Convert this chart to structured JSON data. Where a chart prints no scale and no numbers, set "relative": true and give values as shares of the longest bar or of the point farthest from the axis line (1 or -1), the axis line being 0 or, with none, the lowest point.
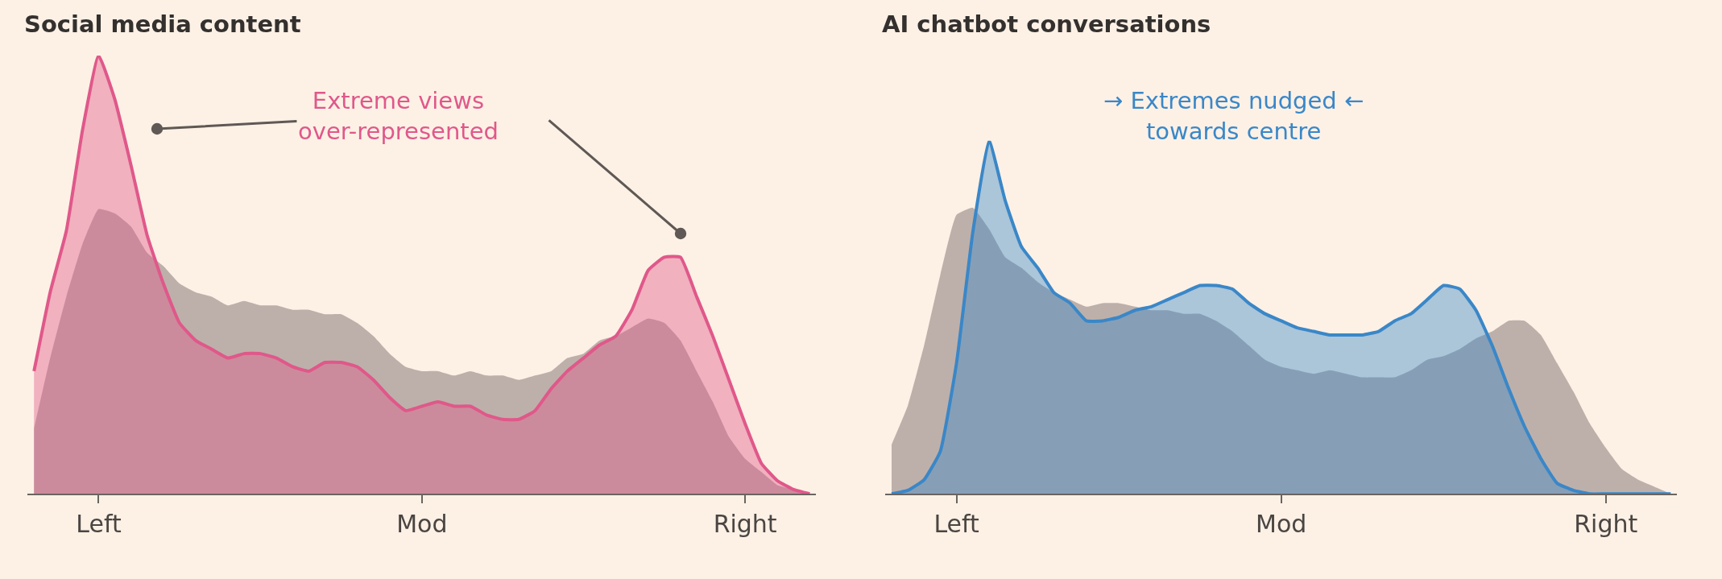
{
  "chart_data": [
    {
      "type": "area",
      "title": "Social media content",
      "relative": true,
      "grid": false,
      "categories": [
        null,
        null,
        null,
        null,
        "Left",
        null,
        null,
        null,
        null,
        null,
        null,
        null,
        null,
        null,
        null,
        null,
        null,
        null,
        null,
        null,
        null,
        null,
        null,
        null,
        "Mod",
        null,
        null,
        null,
        null,
        null,
        null,
        null,
        null,
        null,
        null,
        null,
        null,
        null,
        null,
        null,
        null,
        null,
        null,
        null,
        "Right",
        null,
        null,
        null,
        null
      ],
      "annotations": [
        "Extreme views\nover-represented"
      ],
      "series": [
        {
          "color": "#b9aca6",
          "values": [
            0.15,
            0.31,
            0.45,
            0.57,
            0.65,
            0.64,
            0.61,
            0.55,
            0.52,
            0.48,
            0.46,
            0.45,
            0.43,
            0.44,
            0.43,
            0.43,
            0.42,
            0.42,
            0.41,
            0.41,
            0.39,
            0.36,
            0.32,
            0.29,
            0.28,
            0.28,
            0.27,
            0.28,
            0.27,
            0.27,
            0.26,
            0.27,
            0.28,
            0.31,
            0.32,
            0.35,
            0.36,
            0.38,
            0.4,
            0.39,
            0.35,
            0.28,
            0.21,
            0.13,
            0.08,
            0.05,
            0.02,
            0.01,
            0
          ]
        },
        {
          "color": "#e0588a",
          "line_style": "solid",
          "values": [
            0.28,
            0.46,
            0.6,
            0.83,
            1,
            0.9,
            0.75,
            0.59,
            0.48,
            0.39,
            0.35,
            0.33,
            0.31,
            0.32,
            0.32,
            0.31,
            0.29,
            0.28,
            0.3,
            0.3,
            0.29,
            0.26,
            0.22,
            0.19,
            0.2,
            0.21,
            0.2,
            0.2,
            0.18,
            0.17,
            0.17,
            0.19,
            0.24,
            0.28,
            0.31,
            0.34,
            0.36,
            0.42,
            0.51,
            0.54,
            0.54,
            0.45,
            0.36,
            0.26,
            0.16,
            0.07,
            0.03,
            0.01,
            0
          ]
        }
      ]
    },
    {
      "type": "area",
      "title": "AI chatbot conversations",
      "relative": true,
      "grid": false,
      "categories": [
        null,
        null,
        null,
        null,
        "Left",
        null,
        null,
        null,
        null,
        null,
        null,
        null,
        null,
        null,
        null,
        null,
        null,
        null,
        null,
        null,
        null,
        null,
        null,
        null,
        "Mod",
        null,
        null,
        null,
        null,
        null,
        null,
        null,
        null,
        null,
        null,
        null,
        null,
        null,
        null,
        null,
        null,
        null,
        null,
        null,
        "Right",
        null,
        null,
        null,
        null
      ],
      "annotations": [
        "→ Extremes nudged ←\ntowards centre"
      ],
      "series": [
        {
          "color": "#b9aca6",
          "values": [
            0.14,
            0.25,
            0.42,
            0.62,
            0.79,
            0.81,
            0.75,
            0.67,
            0.64,
            0.6,
            0.57,
            0.55,
            0.53,
            0.54,
            0.54,
            0.53,
            0.52,
            0.52,
            0.51,
            0.51,
            0.49,
            0.46,
            0.42,
            0.38,
            0.36,
            0.35,
            0.34,
            0.35,
            0.34,
            0.33,
            0.33,
            0.33,
            0.35,
            0.38,
            0.39,
            0.41,
            0.44,
            0.46,
            0.49,
            0.49,
            0.45,
            0.37,
            0.29,
            0.2,
            0.13,
            0.07,
            0.04,
            0.02,
            0
          ]
        },
        {
          "color": "#3a87c8",
          "line_style": "solid",
          "values": [
            0,
            0.01,
            0.04,
            0.12,
            0.37,
            0.74,
            1,
            0.83,
            0.7,
            0.64,
            0.57,
            0.54,
            0.49,
            0.49,
            0.5,
            0.52,
            0.53,
            0.55,
            0.57,
            0.59,
            0.59,
            0.58,
            0.54,
            0.51,
            0.49,
            0.47,
            0.46,
            0.45,
            0.45,
            0.45,
            0.46,
            0.49,
            0.51,
            0.55,
            0.59,
            0.58,
            0.52,
            0.42,
            0.3,
            0.19,
            0.1,
            0.03,
            0.01,
            0,
            0,
            0,
            0,
            0,
            0
          ]
        }
      ]
    }
  ]
}
